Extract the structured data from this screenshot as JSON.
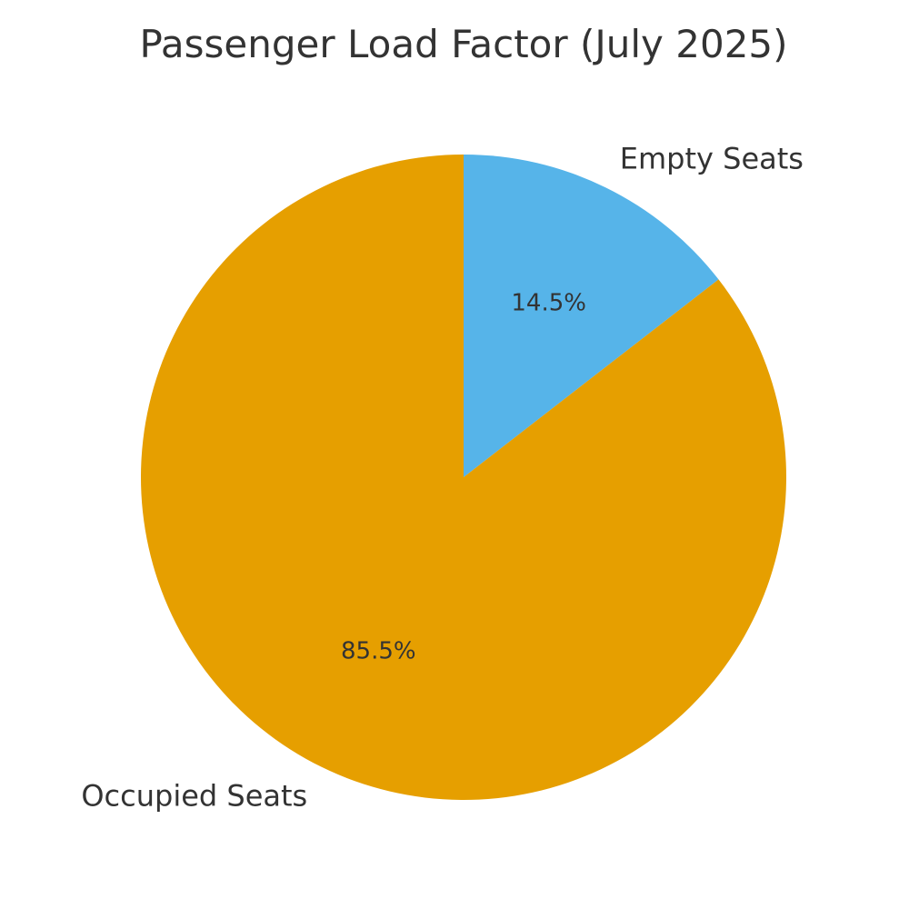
{
  "chart_data": {
    "type": "pie",
    "title": "Passenger Load Factor (July 2025)",
    "slices": [
      {
        "label": "Empty Seats",
        "value": 14.5,
        "pct_label": "14.5%",
        "color": "#56B4E9"
      },
      {
        "label": "Occupied Seats",
        "value": 85.5,
        "pct_label": "85.5%",
        "color": "#E69F00"
      }
    ],
    "start_angle": "top",
    "direction": "clockwise",
    "legend": "none",
    "text_color": "#333333"
  }
}
